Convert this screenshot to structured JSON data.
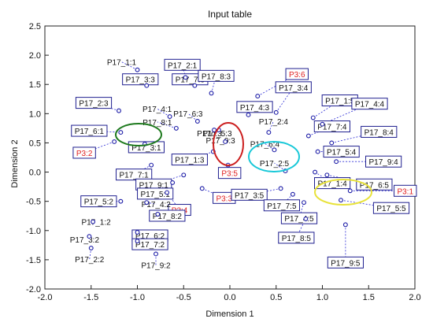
{
  "chart_data": {
    "type": "scatter",
    "title": "Input table",
    "xlabel": "Dimension 1",
    "ylabel": "Dimension 2",
    "xlim": [
      -2.0,
      2.0
    ],
    "ylim": [
      -2.0,
      2.5
    ],
    "xticks": [
      "-2.0",
      "-1.5",
      "-1.0",
      "-0.5",
      "0.0",
      "0.5",
      "1.0",
      "1.5",
      "2.0"
    ],
    "yticks": [
      "-2.0",
      "-1.5",
      "-1.0",
      "-0.5",
      "0.0",
      "0.5",
      "1.0",
      "1.5",
      "2.0",
      "2.5"
    ],
    "grid": false,
    "colors": {
      "point": "#1a1aa6",
      "leader": "#2b2bd6",
      "highlight_label": "#e02020",
      "label": "#111111"
    },
    "points": [
      {
        "name": "P17_1:1",
        "x": -1.0,
        "y": 1.75
      },
      {
        "name": "P17_2:1",
        "x": -0.48,
        "y": 1.62
      },
      {
        "name": "P17_3:3",
        "x": -0.9,
        "y": 1.48
      },
      {
        "name": "P17_7:3",
        "x": -0.38,
        "y": 1.48
      },
      {
        "name": "P17_8:3",
        "x": -0.2,
        "y": 1.35
      },
      {
        "name": "P3:6",
        "x": 0.3,
        "y": 1.3
      },
      {
        "name": "P17_2:3",
        "x": -1.2,
        "y": 1.05
      },
      {
        "name": "P17_4:1",
        "x": -0.65,
        "y": 0.95
      },
      {
        "name": "P17_6:3",
        "x": -0.35,
        "y": 0.87
      },
      {
        "name": "P17_4:3",
        "x": 0.2,
        "y": 0.98
      },
      {
        "name": "P17_3:4",
        "x": 0.5,
        "y": 1.02
      },
      {
        "name": "P17_1:5",
        "x": 0.9,
        "y": 0.93
      },
      {
        "name": "P17_4:4",
        "x": 1.0,
        "y": 0.82
      },
      {
        "name": "P17_6:1",
        "x": -1.18,
        "y": 0.68
      },
      {
        "name": "P17_8:1",
        "x": -0.58,
        "y": 0.75
      },
      {
        "name": "P17o:3",
        "x": -0.17,
        "y": 0.72
      },
      {
        "name": "P17_5:3",
        "x": -0.12,
        "y": 0.72
      },
      {
        "name": "P17_2:4",
        "x": 0.42,
        "y": 0.68
      },
      {
        "name": "P17_7:4",
        "x": 0.85,
        "y": 0.62
      },
      {
        "name": "P17_8:4",
        "x": 1.1,
        "y": 0.5
      },
      {
        "name": "P17_9:3",
        "x": -0.05,
        "y": 0.52
      },
      {
        "name": "P3:2",
        "x": -1.25,
        "y": 0.52
      },
      {
        "name": "P17_3:1",
        "x": -0.92,
        "y": 0.48
      },
      {
        "name": "P17_6:4",
        "x": 0.48,
        "y": 0.38
      },
      {
        "name": "P17_5:4",
        "x": 0.95,
        "y": 0.35
      },
      {
        "name": "P17_9:4",
        "x": 1.15,
        "y": 0.18
      },
      {
        "name": "P17_1:3",
        "x": -0.18,
        "y": 0.35
      },
      {
        "name": "P17_7:1",
        "x": -0.85,
        "y": 0.12
      },
      {
        "name": "P3:5",
        "x": -0.02,
        "y": 0.12
      },
      {
        "name": "P17_2:5",
        "x": 0.6,
        "y": 0.02
      },
      {
        "name": "P17_1:4",
        "x": 0.92,
        "y": 0.0
      },
      {
        "name": "P17_6:5",
        "x": 1.05,
        "y": -0.05
      },
      {
        "name": "P17_9:1",
        "x": -0.5,
        "y": -0.05
      },
      {
        "name": "P17_5:1",
        "x": -0.62,
        "y": -0.18
      },
      {
        "name": "P3:3",
        "x": -0.3,
        "y": -0.28
      },
      {
        "name": "P17_3:5",
        "x": 0.55,
        "y": -0.28
      },
      {
        "name": "P3:1",
        "x": 1.3,
        "y": -0.32
      },
      {
        "name": "P3:4",
        "x": -0.68,
        "y": -0.35
      },
      {
        "name": "P17_7:5",
        "x": 0.68,
        "y": -0.38
      },
      {
        "name": "P17_5:2",
        "x": -1.18,
        "y": -0.5
      },
      {
        "name": "P17_4:2",
        "x": -0.9,
        "y": -0.52
      },
      {
        "name": "P17_5:5",
        "x": 1.2,
        "y": -0.48
      },
      {
        "name": "P17_4:5",
        "x": 0.8,
        "y": -0.52
      },
      {
        "name": "P17_8:2",
        "x": -0.78,
        "y": -0.72
      },
      {
        "name": "P17_1:2",
        "x": -1.48,
        "y": -0.85
      },
      {
        "name": "P17_8:5",
        "x": 0.82,
        "y": -0.8
      },
      {
        "name": "P17_6:2",
        "x": -1.0,
        "y": -1.03
      },
      {
        "name": "P17_3:2",
        "x": -1.52,
        "y": -1.1
      },
      {
        "name": "P17_7:2",
        "x": -1.0,
        "y": -1.18
      },
      {
        "name": "P17_2:2",
        "x": -1.5,
        "y": -1.3
      },
      {
        "name": "P17_9:2",
        "x": -0.8,
        "y": -1.4
      },
      {
        "name": "P17_9:5",
        "x": 1.25,
        "y": -0.9
      }
    ]
  }
}
